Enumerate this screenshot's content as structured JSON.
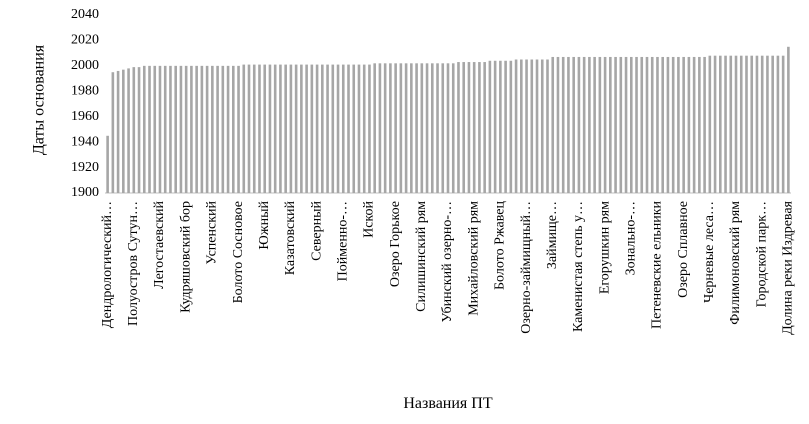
{
  "chart_data": {
    "type": "bar",
    "y_label": "Даты основания",
    "x_label": "Названия ПТ",
    "color": "#a6a6a6",
    "ylim": [
      1900,
      2040
    ],
    "yticks": [
      1900,
      1920,
      1940,
      1960,
      1980,
      2000,
      2020,
      2040
    ],
    "categories": [
      "Дендрологический…",
      null,
      null,
      null,
      null,
      "Полуостров Сутун…",
      null,
      null,
      null,
      null,
      "Легостаевский",
      null,
      null,
      null,
      null,
      "Кудряшовский бор",
      null,
      null,
      null,
      null,
      "Успенский",
      null,
      null,
      null,
      null,
      "Болото Сосновое",
      null,
      null,
      null,
      null,
      "Южный",
      null,
      null,
      null,
      null,
      "Казатовский",
      null,
      null,
      null,
      null,
      "Северный",
      null,
      null,
      null,
      null,
      "Пойменно-…",
      null,
      null,
      null,
      null,
      "Иской",
      null,
      null,
      null,
      null,
      "Озеро Горькое",
      null,
      null,
      null,
      null,
      "Силишинский рям",
      null,
      null,
      null,
      null,
      "Убинский озерно-…",
      null,
      null,
      null,
      null,
      "Михайловский рям",
      null,
      null,
      null,
      null,
      "Болото Ржавец",
      null,
      null,
      null,
      null,
      "Озерно-займищный…",
      null,
      null,
      null,
      null,
      "Займище…",
      null,
      null,
      null,
      null,
      "Каменистая степь у…",
      null,
      null,
      null,
      null,
      "Егорушкин рям",
      null,
      null,
      null,
      null,
      "Зонально-…",
      null,
      null,
      null,
      null,
      "Петеневские ельники",
      null,
      null,
      null,
      null,
      "Озеро Сплавное",
      null,
      null,
      null,
      null,
      "Черневые леса…",
      null,
      null,
      null,
      null,
      "Филимоновский рям",
      null,
      null,
      null,
      null,
      "Городской парк…",
      null,
      null,
      null,
      null,
      "Долина реки Издревая"
    ],
    "values": [
      1945,
      1995,
      1996,
      1997,
      1998,
      1999,
      1999,
      2000,
      2000,
      2000,
      2000,
      2000,
      2000,
      2000,
      2000,
      2000,
      2000,
      2000,
      2000,
      2000,
      2000,
      2000,
      2000,
      2000,
      2000,
      2000,
      2001,
      2001,
      2001,
      2001,
      2001,
      2001,
      2001,
      2001,
      2001,
      2001,
      2001,
      2001,
      2001,
      2001,
      2001,
      2001,
      2001,
      2001,
      2001,
      2001,
      2001,
      2001,
      2001,
      2001,
      2001,
      2002,
      2002,
      2002,
      2002,
      2002,
      2002,
      2002,
      2002,
      2002,
      2002,
      2002,
      2002,
      2002,
      2002,
      2002,
      2002,
      2003,
      2003,
      2003,
      2003,
      2003,
      2003,
      2004,
      2004,
      2004,
      2004,
      2004,
      2005,
      2005,
      2005,
      2005,
      2005,
      2005,
      2005,
      2007,
      2007,
      2007,
      2007,
      2007,
      2007,
      2007,
      2007,
      2007,
      2007,
      2007,
      2007,
      2007,
      2007,
      2007,
      2007,
      2007,
      2007,
      2007,
      2007,
      2007,
      2007,
      2007,
      2007,
      2007,
      2007,
      2007,
      2007,
      2007,
      2007,
      2008,
      2008,
      2008,
      2008,
      2008,
      2008,
      2008,
      2008,
      2008,
      2008,
      2008,
      2008,
      2008,
      2008,
      2008,
      2015
    ]
  }
}
